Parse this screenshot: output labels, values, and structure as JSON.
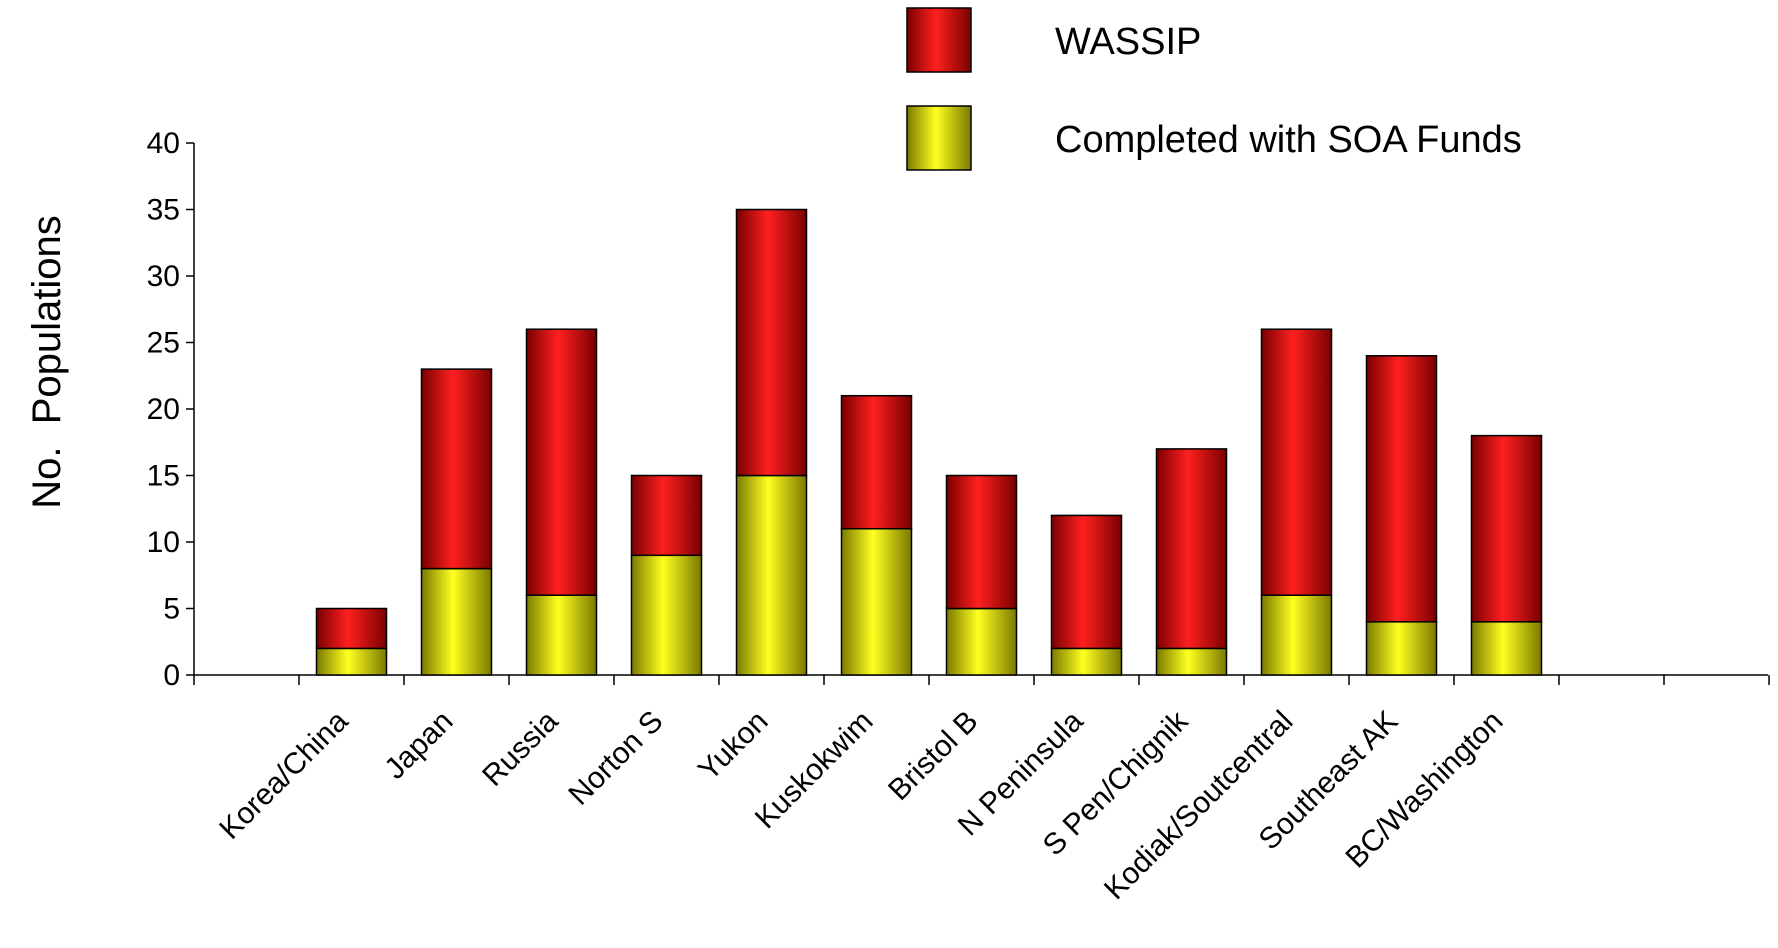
{
  "chart_data": {
    "type": "bar",
    "stacked": true,
    "ylabel": "No.  Populations",
    "xlabel": "",
    "ylim": [
      0,
      40
    ],
    "yticks": [
      0,
      5,
      10,
      15,
      20,
      25,
      30,
      35,
      40
    ],
    "categories": [
      "Korea/China",
      "Japan",
      "Russia",
      "Norton S",
      "Yukon",
      "Kuskokwim",
      "Bristol B",
      "N Peninsula",
      "S Pen/Chignik",
      "Kodiak/Soutcentral",
      "Southeast AK",
      "BC/Washington"
    ],
    "series": [
      {
        "name": "Completed with SOA Funds",
        "color": "#ffff00",
        "values": [
          2,
          8,
          6,
          9,
          15,
          11,
          5,
          2,
          2,
          6,
          4,
          4
        ]
      },
      {
        "name": "WASSIP",
        "color": "#ff0000",
        "values": [
          3,
          15,
          20,
          6,
          20,
          10,
          10,
          10,
          15,
          20,
          20,
          14
        ]
      }
    ],
    "legend": {
      "position": "top-right",
      "items": [
        {
          "label": "WASSIP",
          "color": "#ff0000"
        },
        {
          "label": "Completed with SOA Funds",
          "color": "#ffff00"
        }
      ]
    },
    "grid": false
  }
}
